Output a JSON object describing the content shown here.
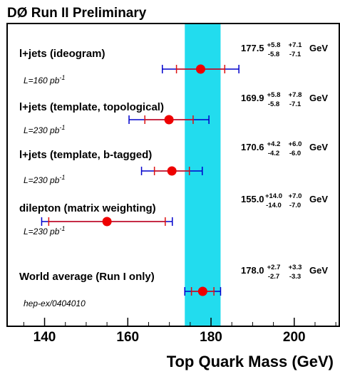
{
  "chart_data": {
    "type": "scatter",
    "title": "DØ Run II Preliminary",
    "xlabel": "Top Quark Mass (GeV)",
    "xlim": [
      131,
      211
    ],
    "xticks": [
      140,
      160,
      180,
      200
    ],
    "xtick_labels": [
      "140",
      "160",
      "180",
      "200"
    ],
    "band": {
      "lo": 173.7,
      "hi": 182.3,
      "color": "#22dcee"
    },
    "grid": false,
    "colors": {
      "stat": "#dd1111",
      "syst": "#0000cc",
      "point": "#ee0000"
    },
    "unit": "GeV",
    "measurements": [
      {
        "label": "l+jets (ideogram)",
        "lumi": "L=160 pb",
        "lumi_sup": "-1",
        "value": 177.5,
        "value_text": "177.5",
        "stat_up": "+5.8",
        "stat_dn": "-5.8",
        "syst_up": "+7.1",
        "syst_dn": "-7.1",
        "stat": 5.8,
        "tot": 9.2
      },
      {
        "label": "l+jets (template, topological)",
        "lumi": "L=230 pb",
        "lumi_sup": "-1",
        "value": 169.9,
        "value_text": "169.9",
        "stat_up": "+5.8",
        "stat_dn": "-5.8",
        "syst_up": "+7.8",
        "syst_dn": "-7.1",
        "stat": 5.8,
        "tot": 9.6
      },
      {
        "label": "l+jets (template, b-tagged)",
        "lumi": "L=230 pb",
        "lumi_sup": "-1",
        "value": 170.6,
        "value_text": "170.6",
        "stat_up": "+4.2",
        "stat_dn": "-4.2",
        "syst_up": "+6.0",
        "syst_dn": "-6.0",
        "stat": 4.2,
        "tot": 7.3
      },
      {
        "label": "dilepton (matrix weighting)",
        "lumi": "L=230 pb",
        "lumi_sup": "-1",
        "value": 155.0,
        "value_text": "155.0",
        "stat_up": "+14.0",
        "stat_dn": "-14.0",
        "syst_up": "+7.0",
        "syst_dn": "-7.0",
        "stat": 14.0,
        "tot": 15.7
      },
      {
        "label": "World average (Run I only)",
        "lumi": "hep-ex/0404010",
        "lumi_sup": "",
        "value": 178.0,
        "value_text": "178.0",
        "stat_up": "+2.7",
        "stat_dn": "-2.7",
        "syst_up": "+3.3",
        "syst_dn": "-3.3",
        "stat": 2.7,
        "tot": 4.3
      }
    ]
  }
}
